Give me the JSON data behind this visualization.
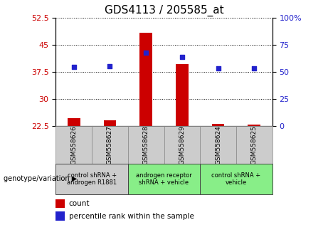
{
  "title": "GDS4113 / 205585_at",
  "samples": [
    "GSM558626",
    "GSM558627",
    "GSM558628",
    "GSM558629",
    "GSM558624",
    "GSM558625"
  ],
  "count_values": [
    24.6,
    24.1,
    48.3,
    39.6,
    23.1,
    22.9
  ],
  "percentile_values": [
    54.5,
    55.0,
    67.5,
    64.0,
    53.0,
    53.0
  ],
  "ylim_left": [
    22.5,
    52.5
  ],
  "ylim_right": [
    0,
    100
  ],
  "yticks_left": [
    22.5,
    30,
    37.5,
    45,
    52.5
  ],
  "yticks_right": [
    0,
    25,
    50,
    75,
    100
  ],
  "ytick_labels_left": [
    "22.5",
    "30",
    "37.5",
    "45",
    "52.5"
  ],
  "ytick_labels_right": [
    "0",
    "25",
    "50",
    "75",
    "100%"
  ],
  "bar_color": "#cc0000",
  "dot_color": "#2222cc",
  "bar_width": 0.35,
  "group_info": [
    {
      "samples": [
        "GSM558626",
        "GSM558627"
      ],
      "label": "control shRNA +\nandrogen R1881",
      "color": "#cccccc"
    },
    {
      "samples": [
        "GSM558628",
        "GSM558629"
      ],
      "label": "androgen receptor\nshRNA + vehicle",
      "color": "#88ee88"
    },
    {
      "samples": [
        "GSM558624",
        "GSM558625"
      ],
      "label": "control shRNA +\nvehicle",
      "color": "#88ee88"
    }
  ],
  "genotype_label": "genotype/variation",
  "legend_count_label": "count",
  "legend_percentile_label": "percentile rank within the sample",
  "title_fontsize": 11,
  "tick_fontsize": 8
}
